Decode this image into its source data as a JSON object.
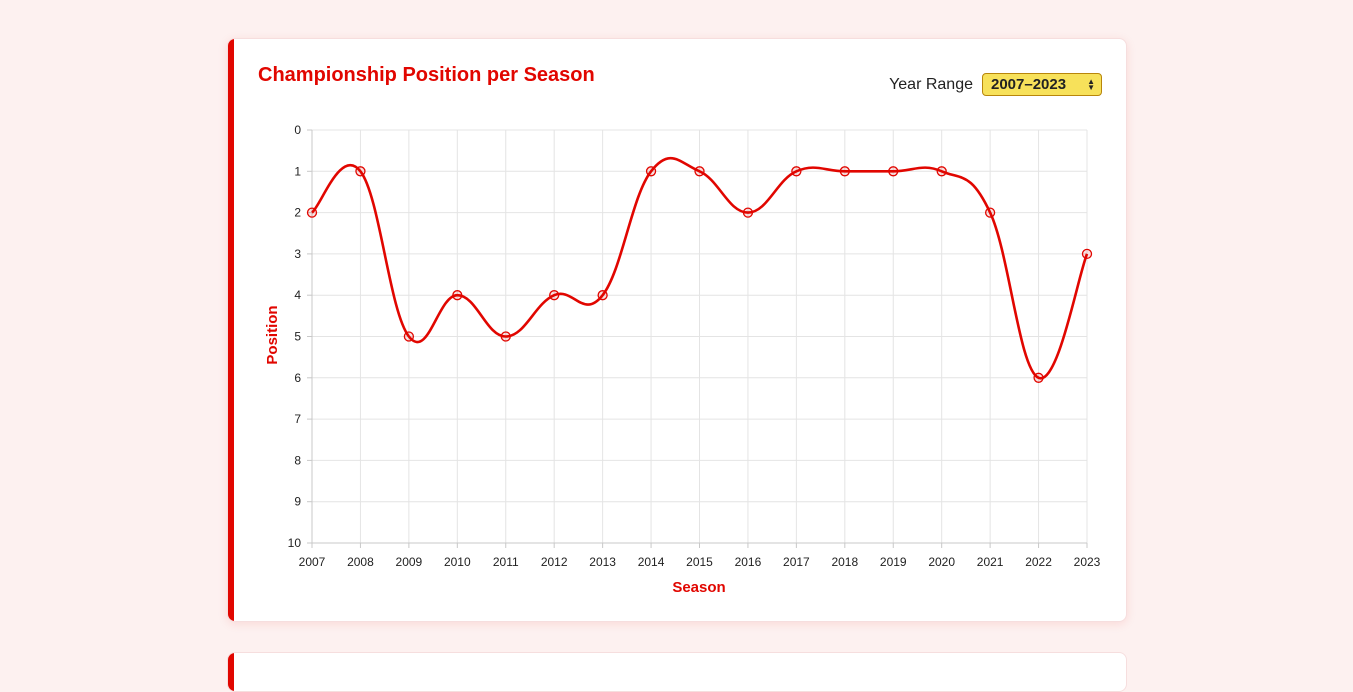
{
  "title": "Championship Position per Season",
  "controls": {
    "range_label": "Year Range",
    "range_value": "2007–2023"
  },
  "colors": {
    "accent": "#e10600",
    "select_bg": "#f7e15a",
    "page_bg": "#fdf1f0"
  },
  "chart_data": {
    "type": "line",
    "title": "Championship Position per Season",
    "xlabel": "Season",
    "ylabel": "Position",
    "x": [
      "2007",
      "2008",
      "2009",
      "2010",
      "2011",
      "2012",
      "2013",
      "2014",
      "2015",
      "2016",
      "2017",
      "2018",
      "2019",
      "2020",
      "2021",
      "2022",
      "2023"
    ],
    "series": [
      {
        "values": [
          2,
          1,
          5,
          4,
          5,
          4,
          4,
          1,
          1,
          2,
          1,
          1,
          1,
          1,
          2,
          6,
          3
        ]
      }
    ],
    "ylim": [
      0,
      10
    ],
    "y_reversed": true,
    "yticks": [
      "0",
      "1",
      "2",
      "3",
      "4",
      "5",
      "6",
      "7",
      "8",
      "9",
      "10"
    ],
    "grid": true,
    "smooth": true
  }
}
